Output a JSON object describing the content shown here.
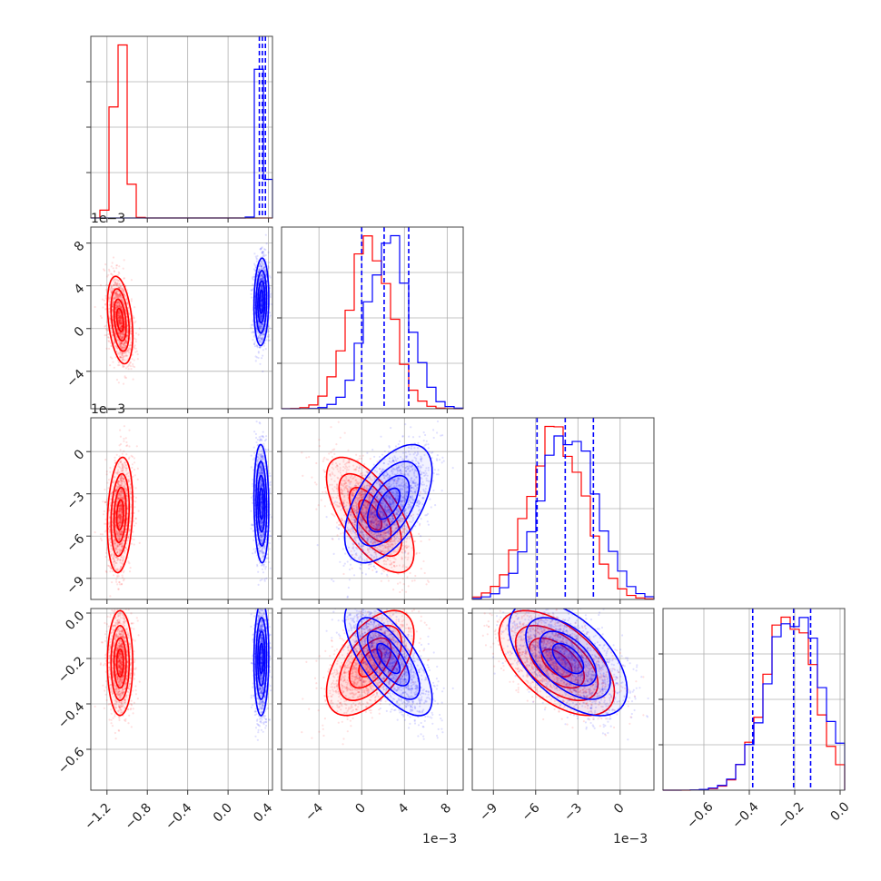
{
  "chart_data": {
    "type": "corner",
    "grid": true,
    "colors": {
      "red": "#ff0000",
      "blue": "#0000ff"
    },
    "offset_labels": [
      "1e−3",
      "1e−3",
      "1e−3",
      "1e−3"
    ],
    "params": [
      {
        "range": [
          -1.36,
          0.44
        ],
        "ticks": [
          -1.2,
          -0.8,
          -0.4,
          0.0,
          0.4
        ],
        "tick_labels": [
          "−1.2",
          "−0.8",
          "−0.4",
          "0.0",
          "0.4"
        ]
      },
      {
        "range": [
          -7.5,
          9.5
        ],
        "ticks": [
          -4,
          0,
          4,
          8
        ],
        "tick_labels": [
          "−4",
          "0",
          "4",
          "8"
        ]
      },
      {
        "range": [
          -10.5,
          2.4
        ],
        "ticks": [
          -9,
          -6,
          -3,
          0
        ],
        "tick_labels": [
          "−9",
          "−6",
          "−3",
          "0"
        ]
      },
      {
        "range": [
          -0.78,
          0.02
        ],
        "ticks": [
          -0.6,
          -0.4,
          -0.2,
          0.0
        ],
        "tick_labels": [
          "−0.6",
          "−0.4",
          "−0.2",
          "0.0"
        ]
      }
    ],
    "red_mean": [
      -1.07,
      0.8,
      -4.5,
      -0.22
    ],
    "red_std": [
      0.06,
      1.95,
      1.95,
      0.11
    ],
    "blue_mean": [
      0.33,
      2.5,
      -3.7,
      -0.2
    ],
    "blue_std": [
      0.035,
      1.95,
      2.0,
      0.12
    ],
    "blue_quantiles": [
      [
        0.31,
        0.34,
        0.37
      ],
      [
        0.0,
        2.1,
        4.4
      ],
      [
        -5.9,
        -3.9,
        -1.9
      ],
      [
        -0.385,
        -0.205,
        -0.13
      ]
    ],
    "pairs": [
      {
        "row": 1,
        "col": 0,
        "rho_red": -0.35,
        "rho_blue": 0.1
      },
      {
        "row": 2,
        "col": 0,
        "rho_red": 0.2,
        "rho_blue": -0.1
      },
      {
        "row": 2,
        "col": 1,
        "rho_red": -0.65,
        "rho_blue": 0.55
      },
      {
        "row": 3,
        "col": 0,
        "rho_red": 0.0,
        "rho_blue": 0.05
      },
      {
        "row": 3,
        "col": 1,
        "rho_red": 0.55,
        "rho_blue": -0.7
      },
      {
        "row": 3,
        "col": 2,
        "rho_red": -0.55,
        "rho_blue": -0.55
      }
    ]
  }
}
